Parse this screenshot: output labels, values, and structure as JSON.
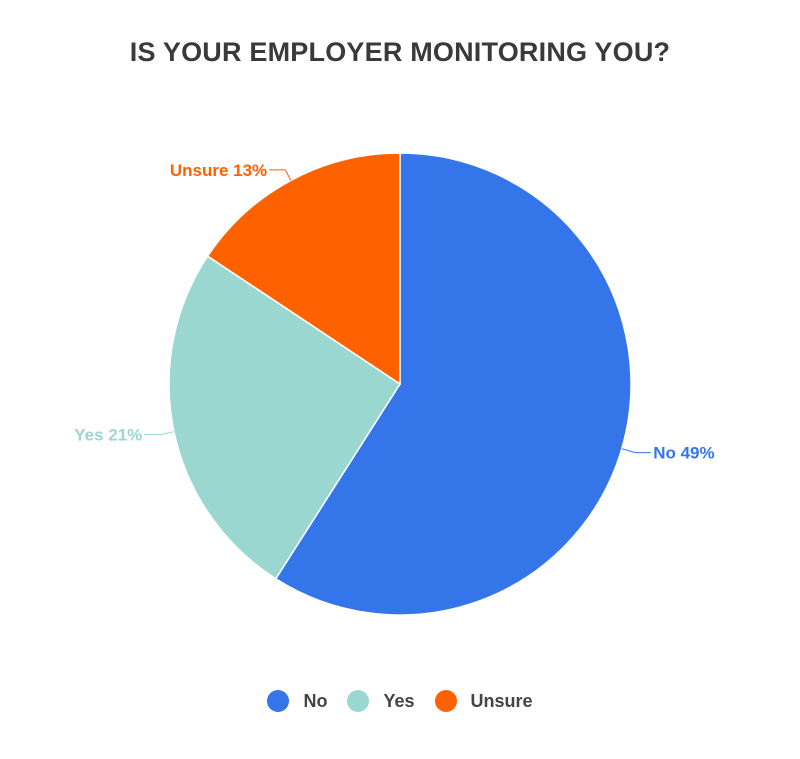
{
  "chart_data": {
    "type": "pie",
    "title": "IS YOUR EMPLOYER MONITORING YOU?",
    "categories": [
      "No",
      "Yes",
      "Unsure"
    ],
    "values": [
      49,
      21,
      13
    ],
    "value_unit": "%",
    "slice_labels": [
      "No 49%",
      "Yes 21%",
      "Unsure 13%"
    ],
    "colors": [
      "#3475e9",
      "#9ad7d1",
      "#fe6200"
    ],
    "legend_position": "bottom",
    "start_angle_deg": 0,
    "direction": "clockwise"
  },
  "legend": {
    "items": [
      {
        "label": "No",
        "color": "#3475e9"
      },
      {
        "label": "Yes",
        "color": "#9ad7d1"
      },
      {
        "label": "Unsure",
        "color": "#fe6200"
      }
    ]
  }
}
